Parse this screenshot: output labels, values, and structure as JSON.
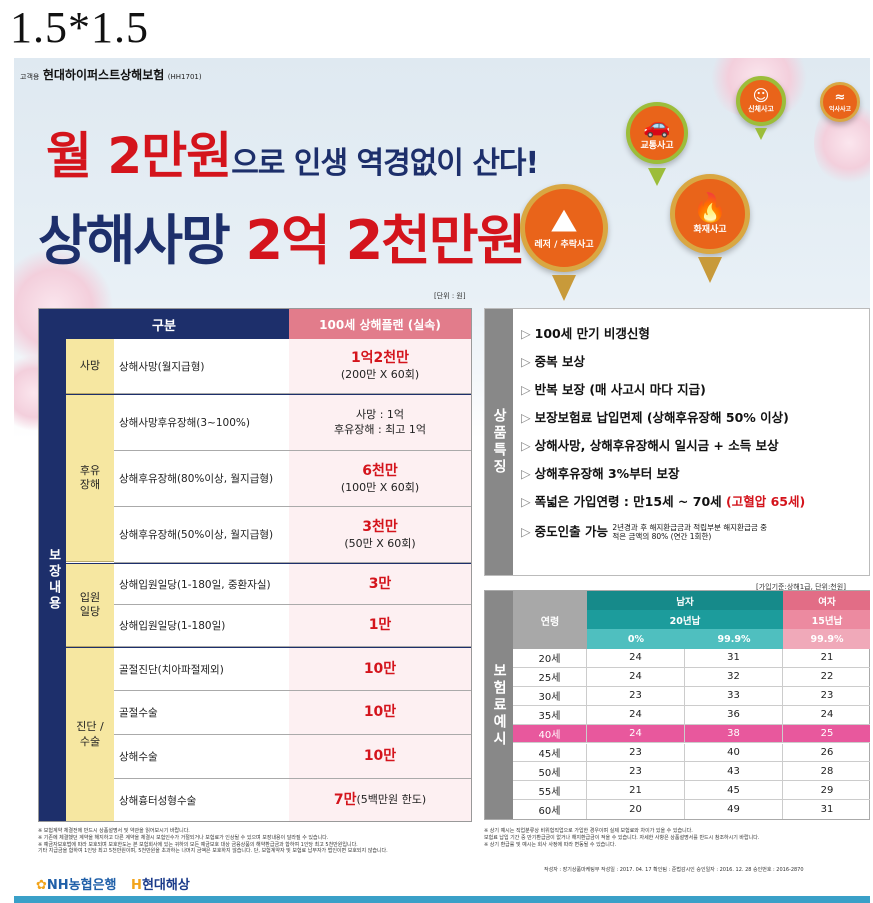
{
  "top_label": "1.5*1.5",
  "brand": {
    "prefix": "고객용",
    "company": "현대하이퍼스트상해보험",
    "code": "(HH1701)"
  },
  "headline1": {
    "a": "월 2만원",
    "b": "으로 인생 역경없이 산다!"
  },
  "headline2": {
    "a": "상해사망 ",
    "b": "2억 2천만원"
  },
  "pins": [
    {
      "label": "교통사고",
      "icon": "car-icon",
      "color": "#e9641a"
    },
    {
      "label": "신체사고",
      "icon": "person-icon",
      "color": "#e9641a"
    },
    {
      "label": "익사사고",
      "icon": "swim-icon",
      "color": "#e9641a"
    },
    {
      "label": "레저 / 추락사고",
      "icon": "climb-icon",
      "color": "#e9641a"
    },
    {
      "label": "화재사고",
      "icon": "fire-icon",
      "color": "#e9641a"
    }
  ],
  "unit_left": "[단위 : 원]",
  "left_table": {
    "header_category": "구분",
    "header_plan": "100세 상해플랜 (실속)",
    "side_label": "보장내용",
    "groups": [
      {
        "label": "사망",
        "rows": [
          {
            "name": "상해사망(월지급형)",
            "v1": "1억2천만",
            "v2": "(200만 X 60회)"
          }
        ]
      },
      {
        "label": "후유장해",
        "rows": [
          {
            "name": "상해사망후유장해(3~100%)",
            "v1": "사망 : 1억",
            "v2": "후유장해 : 최고 1억"
          },
          {
            "name": "상해후유장해(80%이상, 월지급형)",
            "v1": "6천만",
            "v2": "(100만 X 60회)"
          },
          {
            "name": "상해후유장해(50%이상, 월지급형)",
            "v1": "3천만",
            "v2": "(50만 X 60회)"
          }
        ]
      },
      {
        "label": "입원일당",
        "rows": [
          {
            "name": "상해입원일당(1-180일, 중환자실)",
            "v1": "3만",
            "v2": ""
          },
          {
            "name": "상해입원일당(1-180일)",
            "v1": "1만",
            "v2": ""
          }
        ]
      },
      {
        "label": "진단 / 수술",
        "rows": [
          {
            "name": "골절진단(치아파절제외)",
            "v1": "10만",
            "v2": ""
          },
          {
            "name": "골절수술",
            "v1": "10만",
            "v2": ""
          },
          {
            "name": "상해수술",
            "v1": "10만",
            "v2": ""
          },
          {
            "name": "상해흉터성형수술",
            "v1": "7만",
            "v2": " (5백만원 한도)"
          }
        ]
      }
    ]
  },
  "features": {
    "side_label": "상품특징",
    "items": [
      "100세 만기 비갱신형",
      "중복 보상",
      "반복 보장 (매 사고시 마다 지급)",
      "보장보험료 납입면제 (상해후유장해 50% 이상)",
      "상해사망, 상해후유장해시 일시금 + 소득 보상",
      "상해후유장해 3%부터 보장",
      "폭넓은 가입연령 : 만15세 ~ 70세 ",
      "중도인출 가능 "
    ],
    "item7_red": "(고혈압 65세)",
    "item8_small1": "2년경과 후 해지환급금과 적립부분 해지환급금 중",
    "item8_small2": "적은 금액의 80% (연간 1회한)"
  },
  "unit_right": "[가입기준:상해1급, 단위:천원]",
  "premium_table": {
    "side_label": "보험료예시",
    "col_age": "연령",
    "male": "남자",
    "female": "여자",
    "male_period": "20년납",
    "female_period": "15년납",
    "male_c1": "0%",
    "male_c2": "99.9%",
    "female_c1": "99.9%",
    "highlight_color": "#e8589d",
    "rows": [
      [
        "20세",
        "24",
        "31",
        "21"
      ],
      [
        "25세",
        "24",
        "32",
        "22"
      ],
      [
        "30세",
        "23",
        "33",
        "23"
      ],
      [
        "35세",
        "24",
        "36",
        "24"
      ],
      [
        "40세",
        "24",
        "38",
        "25"
      ],
      [
        "45세",
        "23",
        "40",
        "26"
      ],
      [
        "50세",
        "23",
        "43",
        "28"
      ],
      [
        "55세",
        "21",
        "45",
        "29"
      ],
      [
        "60세",
        "20",
        "49",
        "31"
      ]
    ]
  },
  "notes_left": [
    "※ 보험계약 체결전에 반드시 상품설명서 및 약관을 읽어보시기 바랍니다.",
    "※ 기존에 체결했던 계약을 해지하고 다른 계약을 체결시 보험인수가 거절되거나 보험료가 인상될 수 있으며 보장내용이 달라질 수 있습니다.",
    "※ 예금자보호법에 따라 보호되며 보호한도는 본 보험회사에 있는 귀하의 모든 예금보호 대상 금융상품의 해약환급금과 합하여 1인당 최고 5천만원입니다.",
    "기타 지급금을 합하여 1인당 최고 5천만원이며, 5천만원을 초과하는 나머지 금액은 보호하지 않습니다. 단, 보험계약자 및 보험료 납부자가 법인이면 보호되지 않습니다."
  ],
  "notes_right": [
    "※ 상기 예시는 직업분류상 비위험직업으로 가입한 경우이며 실제 보험료와 차이가 있을 수 있습니다.",
    "보험료 납입 기간 중 만기환급금이 없거나 해지환급금이 적을 수 있습니다. 자세한 사항은 상품설명서를 반드시 참조하시기 바랍니다.",
    "※ 상기 환급률 및 예시는 회사 사정에 따라 변동될 수 있습니다."
  ],
  "approval": "작성자 : 장기상품마케팅부   작성일 : 2017. 04. 17   확인팀 : 준법감시인   승인일자 : 2016. 12. 28   승인번호 : 2016-2870",
  "logos": {
    "nh": "NH농협은행",
    "hd": "현대해상"
  }
}
